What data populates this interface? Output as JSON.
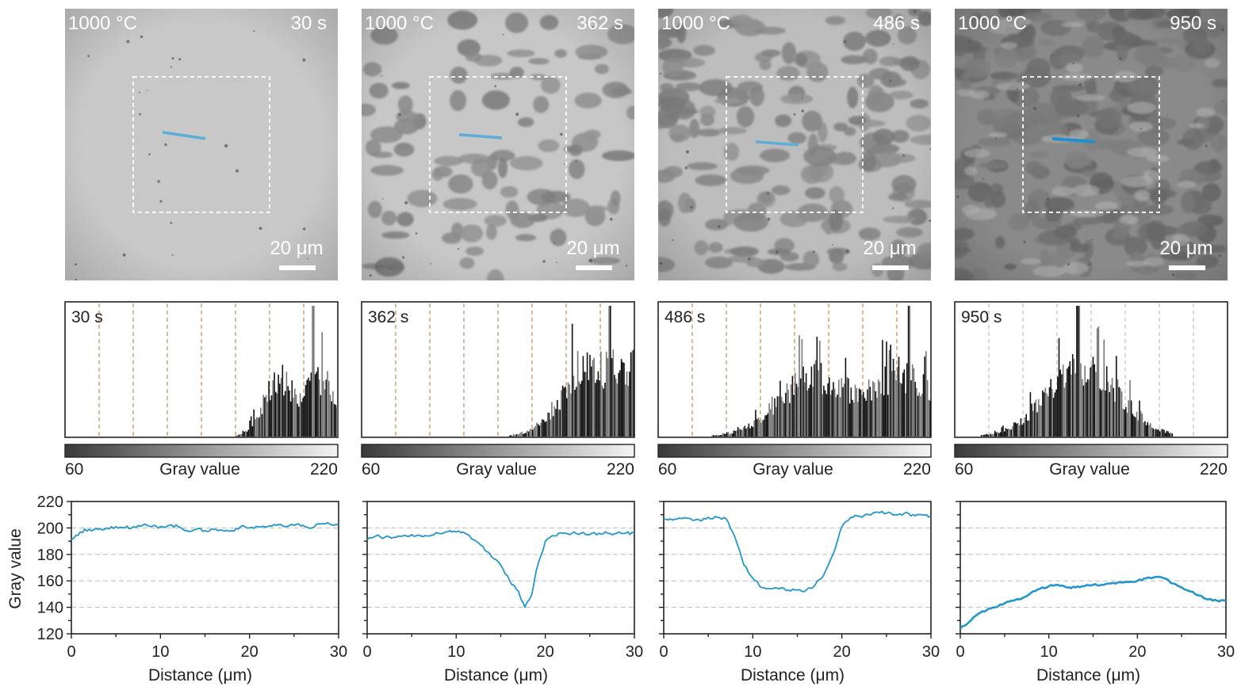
{
  "panels": [
    {
      "temp": "1000 °C",
      "time": "30 s",
      "scalebar": "20 μm",
      "hist_label": "30 s",
      "bg": "#c8c8c8",
      "spot_density": 0.0,
      "line_color": "#5aaed8"
    },
    {
      "temp": "1000 °C",
      "time": "362 s",
      "scalebar": "20 μm",
      "hist_label": "362 s",
      "bg": "#c7c7c7",
      "spot_density": 0.35,
      "line_color": "#5aaed8"
    },
    {
      "temp": "1000 °C",
      "time": "486 s",
      "scalebar": "20 μm",
      "hist_label": "486 s",
      "bg": "#bdbdbd",
      "spot_density": 0.6,
      "line_color": "#5aaed8"
    },
    {
      "temp": "1000 °C",
      "time": "950 s",
      "scalebar": "20 μm",
      "hist_label": "950 s",
      "bg": "#8a8a8a",
      "spot_density": 0.85,
      "line_color": "#1f8fd0"
    }
  ],
  "colorbar": {
    "min_label": "60",
    "mid_label": "Gray value",
    "max_label": "220"
  },
  "profile_axes": {
    "ylabel": "Gray value",
    "xlabel": "Distance (μm)",
    "yticks": [
      "220",
      "200",
      "180",
      "160",
      "140",
      "120"
    ],
    "xticks": [
      "0",
      "10",
      "20",
      "30"
    ]
  },
  "chart_data": [
    {
      "type": "histogram",
      "title": "30 s",
      "x_range": [
        60,
        220
      ],
      "mode_region": [
        165,
        215
      ],
      "peak_gray_values": [
        185,
        210
      ],
      "tallest_bin_at": 205
    },
    {
      "type": "histogram",
      "title": "362 s",
      "x_range": [
        60,
        220
      ],
      "mode_region": [
        120,
        215
      ],
      "peak_gray_values": [
        195,
        210
      ],
      "tallest_bin_at": 205
    },
    {
      "type": "histogram",
      "title": "486 s",
      "x_range": [
        60,
        220
      ],
      "mode_region": [
        105,
        220
      ],
      "peak_gray_values": [
        150,
        205
      ],
      "tallest_bin_at": 207
    },
    {
      "type": "histogram",
      "title": "950 s",
      "x_range": [
        60,
        220
      ],
      "mode_region": [
        90,
        180
      ],
      "peak_gray_values": [
        135
      ],
      "tallest_bin_at": 132
    },
    {
      "type": "line",
      "xlabel": "Distance (μm)",
      "ylabel": "Gray value",
      "xlim": [
        0,
        30
      ],
      "ylim": [
        120,
        220
      ],
      "x": [
        0,
        1,
        2,
        3,
        4,
        5,
        6,
        7,
        8,
        9,
        10,
        11,
        12,
        13,
        14,
        15,
        16,
        17,
        18,
        19,
        20,
        21,
        22,
        23,
        24,
        25,
        26,
        27,
        28,
        29,
        30
      ],
      "y": [
        191,
        197,
        199,
        199,
        200,
        201,
        200,
        201,
        202,
        201,
        201,
        202,
        201,
        198,
        199,
        198,
        199,
        198,
        198,
        201,
        200,
        201,
        201,
        202,
        201,
        202,
        202,
        200,
        203,
        203,
        202
      ]
    },
    {
      "type": "line",
      "xlabel": "Distance (μm)",
      "ylabel": "Gray value",
      "xlim": [
        0,
        30
      ],
      "ylim": [
        120,
        220
      ],
      "x": [
        0,
        1,
        2,
        3,
        4,
        5,
        6,
        7,
        8,
        9,
        10,
        11,
        12,
        13,
        14,
        15,
        16,
        17,
        17.7,
        18.5,
        19,
        20,
        21,
        22,
        23,
        24,
        25,
        26,
        27,
        28,
        29,
        30
      ],
      "y": [
        191,
        194,
        193,
        193,
        194,
        195,
        194,
        194,
        196,
        197,
        197,
        196,
        191,
        186,
        178,
        172,
        160,
        152,
        140,
        150,
        168,
        190,
        194,
        196,
        196,
        196,
        195,
        196,
        196,
        196,
        196,
        196
      ]
    },
    {
      "type": "line",
      "xlabel": "Distance (μm)",
      "ylabel": "Gray value",
      "xlim": [
        0,
        30
      ],
      "ylim": [
        120,
        220
      ],
      "x": [
        0,
        1,
        2,
        3,
        4,
        5,
        6,
        7,
        8,
        9,
        10,
        11,
        12,
        13,
        14,
        15,
        16,
        17,
        18,
        19,
        20,
        21,
        22,
        23,
        24,
        25,
        26,
        27,
        28,
        29,
        30
      ],
      "y": [
        207,
        206,
        207,
        207,
        206,
        208,
        208,
        207,
        193,
        172,
        162,
        155,
        154,
        154,
        153,
        153,
        153,
        157,
        165,
        180,
        201,
        208,
        209,
        210,
        212,
        211,
        210,
        211,
        210,
        210,
        209
      ]
    },
    {
      "type": "line",
      "xlabel": "Distance (μm)",
      "ylabel": "Gray value",
      "xlim": [
        0,
        30
      ],
      "ylim": [
        120,
        220
      ],
      "x": [
        0,
        1,
        2,
        3,
        4,
        5,
        6,
        7,
        8,
        9,
        10,
        11,
        12,
        13,
        14,
        15,
        16,
        17,
        18,
        19,
        20,
        21,
        22,
        23,
        24,
        25,
        26,
        27,
        28,
        29,
        30
      ],
      "y": [
        124,
        129,
        135,
        138,
        140,
        143,
        145,
        147,
        151,
        154,
        156,
        157,
        155,
        155,
        156,
        157,
        157,
        158,
        159,
        159,
        160,
        162,
        163,
        162,
        158,
        155,
        152,
        149,
        146,
        145,
        145
      ]
    }
  ]
}
